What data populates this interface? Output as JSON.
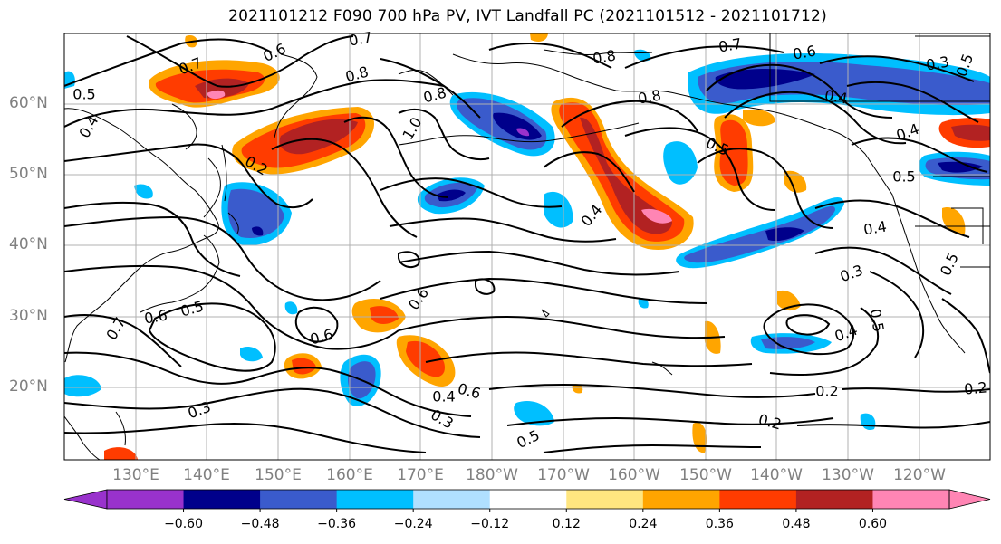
{
  "title": "2021101212 F090 700 hPa PV, IVT Landfall PC (2021101512 - 2021101712)",
  "lat_labels": [
    "60°N",
    "50°N",
    "40°N",
    "30°N",
    "20°N"
  ],
  "lon_labels": [
    "130°E",
    "140°E",
    "150°E",
    "160°E",
    "170°E",
    "180°W",
    "170°W",
    "160°W",
    "150°W",
    "140°W",
    "130°W",
    "120°W"
  ],
  "contour_labels": [
    "0.7",
    "0.6",
    "0.7",
    "0.8",
    "0.6",
    "0.6",
    "0.8",
    "0.7",
    "0.6",
    "0.5",
    "0.5",
    "0.4",
    "0.8",
    "0.8",
    "0.4",
    "0.5",
    "0.4",
    "0.5",
    "1.0",
    "0.4",
    "0.4",
    "0.5",
    "0.5",
    "0.4",
    "0.3",
    "0.5",
    "0.6",
    "0.4",
    "0.7",
    "0.6",
    "0.3",
    "0.3",
    "0.5",
    "0.2",
    "0.2",
    "0.2",
    "0.2",
    "0.3",
    "0.3"
  ],
  "colorbar": {
    "ticks": [
      "−0.60",
      "−0.48",
      "−0.36",
      "−0.24",
      "−0.12",
      "0.12",
      "0.24",
      "0.36",
      "0.48",
      "0.60"
    ],
    "colors": [
      "#9932cc",
      "#00008b",
      "#3a5bcc",
      "#00bfff",
      "#b0e0ff",
      "#ffffff",
      "#ffe680",
      "#ffa500",
      "#ff3c00",
      "#b22222",
      "#ff85b4"
    ]
  },
  "chart_data": {
    "type": "map",
    "title": "2021101212 F090 700 hPa PV, IVT Landfall PC (2021101512 - 2021101712)",
    "projection": "PlateCarree",
    "lon_range_deg": [
      120,
      250
    ],
    "lat_range_deg": [
      10,
      70
    ],
    "contour_field": "700 hPa PV (black contours)",
    "contour_levels_shown": [
      0.2,
      0.3,
      0.4,
      0.5,
      0.6,
      0.7,
      0.8,
      1.0
    ],
    "filled_field": "IVT Landfall PC",
    "filled_levels": [
      -0.6,
      -0.48,
      -0.36,
      -0.24,
      -0.12,
      0.12,
      0.24,
      0.36,
      0.48,
      0.6
    ],
    "grid": true,
    "colorbar_extend": "both",
    "colorbar_position": "bottom"
  }
}
